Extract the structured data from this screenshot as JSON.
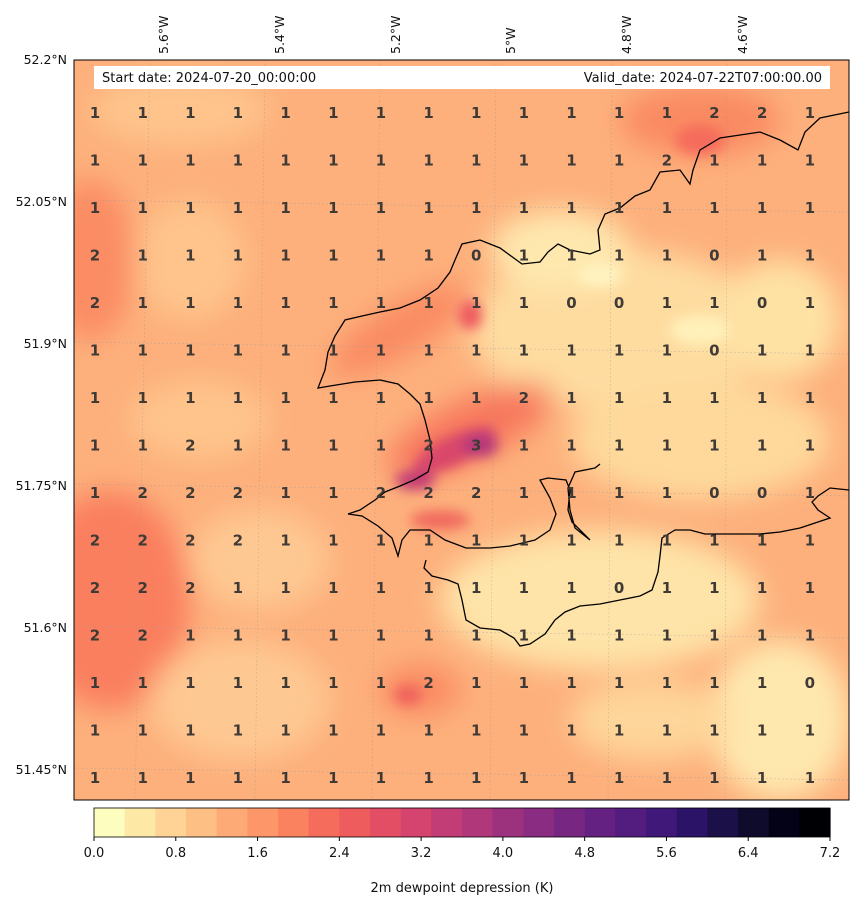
{
  "header": {
    "start_date": "Start date: 2024-07-20_00:00:00",
    "valid_date": "Valid_date: 2024-07-22T07:00:00.00"
  },
  "axes": {
    "lat_labels": [
      "52.2°N",
      "52.05°N",
      "51.9°N",
      "51.75°N",
      "51.6°N",
      "51.45°N"
    ],
    "lon_labels": [
      "5.6°W",
      "5.4°W",
      "5.2°W",
      "5°W",
      "4.8°W",
      "4.6°W"
    ]
  },
  "grid_values": [
    [
      "1",
      "1",
      "1",
      "1",
      "1",
      "1",
      "1",
      "1",
      "1",
      "1",
      "1",
      "1",
      "1",
      "2",
      "2",
      "1"
    ],
    [
      "1",
      "1",
      "1",
      "1",
      "1",
      "1",
      "1",
      "1",
      "1",
      "1",
      "1",
      "1",
      "2",
      "1",
      "1",
      "1"
    ],
    [
      "1",
      "1",
      "1",
      "1",
      "1",
      "1",
      "1",
      "1",
      "1",
      "1",
      "1",
      "1",
      "1",
      "1",
      "1",
      "1"
    ],
    [
      "2",
      "1",
      "1",
      "1",
      "1",
      "1",
      "1",
      "1",
      "0",
      "1",
      "1",
      "1",
      "1",
      "0",
      "1",
      "1"
    ],
    [
      "2",
      "1",
      "1",
      "1",
      "1",
      "1",
      "1",
      "1",
      "1",
      "1",
      "0",
      "0",
      "1",
      "1",
      "0",
      "1"
    ],
    [
      "1",
      "1",
      "1",
      "1",
      "1",
      "1",
      "1",
      "1",
      "1",
      "1",
      "1",
      "1",
      "1",
      "0",
      "1",
      "1"
    ],
    [
      "1",
      "1",
      "1",
      "1",
      "1",
      "1",
      "1",
      "1",
      "1",
      "2",
      "1",
      "1",
      "1",
      "1",
      "1",
      "1"
    ],
    [
      "1",
      "1",
      "2",
      "1",
      "1",
      "1",
      "1",
      "2",
      "3",
      "1",
      "1",
      "1",
      "1",
      "1",
      "1",
      "1"
    ],
    [
      "1",
      "2",
      "2",
      "2",
      "1",
      "1",
      "2",
      "2",
      "2",
      "1",
      "1",
      "1",
      "1",
      "0",
      "0",
      "1"
    ],
    [
      "2",
      "2",
      "2",
      "2",
      "1",
      "1",
      "1",
      "1",
      "1",
      "1",
      "1",
      "1",
      "1",
      "1",
      "1",
      "1"
    ],
    [
      "2",
      "2",
      "2",
      "1",
      "1",
      "1",
      "1",
      "1",
      "1",
      "1",
      "1",
      "0",
      "1",
      "1",
      "1",
      "1"
    ],
    [
      "2",
      "2",
      "1",
      "1",
      "1",
      "1",
      "1",
      "1",
      "1",
      "1",
      "1",
      "1",
      "1",
      "1",
      "1",
      "1"
    ],
    [
      "1",
      "1",
      "1",
      "1",
      "1",
      "1",
      "1",
      "2",
      "1",
      "1",
      "1",
      "1",
      "1",
      "1",
      "1",
      "0"
    ],
    [
      "1",
      "1",
      "1",
      "1",
      "1",
      "1",
      "1",
      "1",
      "1",
      "1",
      "1",
      "1",
      "1",
      "1",
      "1",
      "1"
    ],
    [
      "1",
      "1",
      "1",
      "1",
      "1",
      "1",
      "1",
      "1",
      "1",
      "1",
      "1",
      "1",
      "1",
      "1",
      "1",
      "1"
    ]
  ],
  "colorbar": {
    "label": "2m dewpoint depression (K)",
    "min": 0.0,
    "max": 7.2,
    "ticks": [
      "0.0",
      "0.8",
      "1.6",
      "2.4",
      "3.2",
      "4.0",
      "4.8",
      "5.6",
      "6.4",
      "7.2"
    ],
    "colors": [
      "#fcfdbf",
      "#fde8a6",
      "#fed395",
      "#febf84",
      "#feaa76",
      "#fd9668",
      "#fa825f",
      "#f56c5c",
      "#ee5c5e",
      "#e34e65",
      "#d4446e",
      "#c23d75",
      "#af377a",
      "#9c327e",
      "#8a2c81",
      "#772782",
      "#652181",
      "#531c7f",
      "#3f187a",
      "#2b1467",
      "#1b1047",
      "#0e0b2c",
      "#030216",
      "#000004"
    ]
  }
}
